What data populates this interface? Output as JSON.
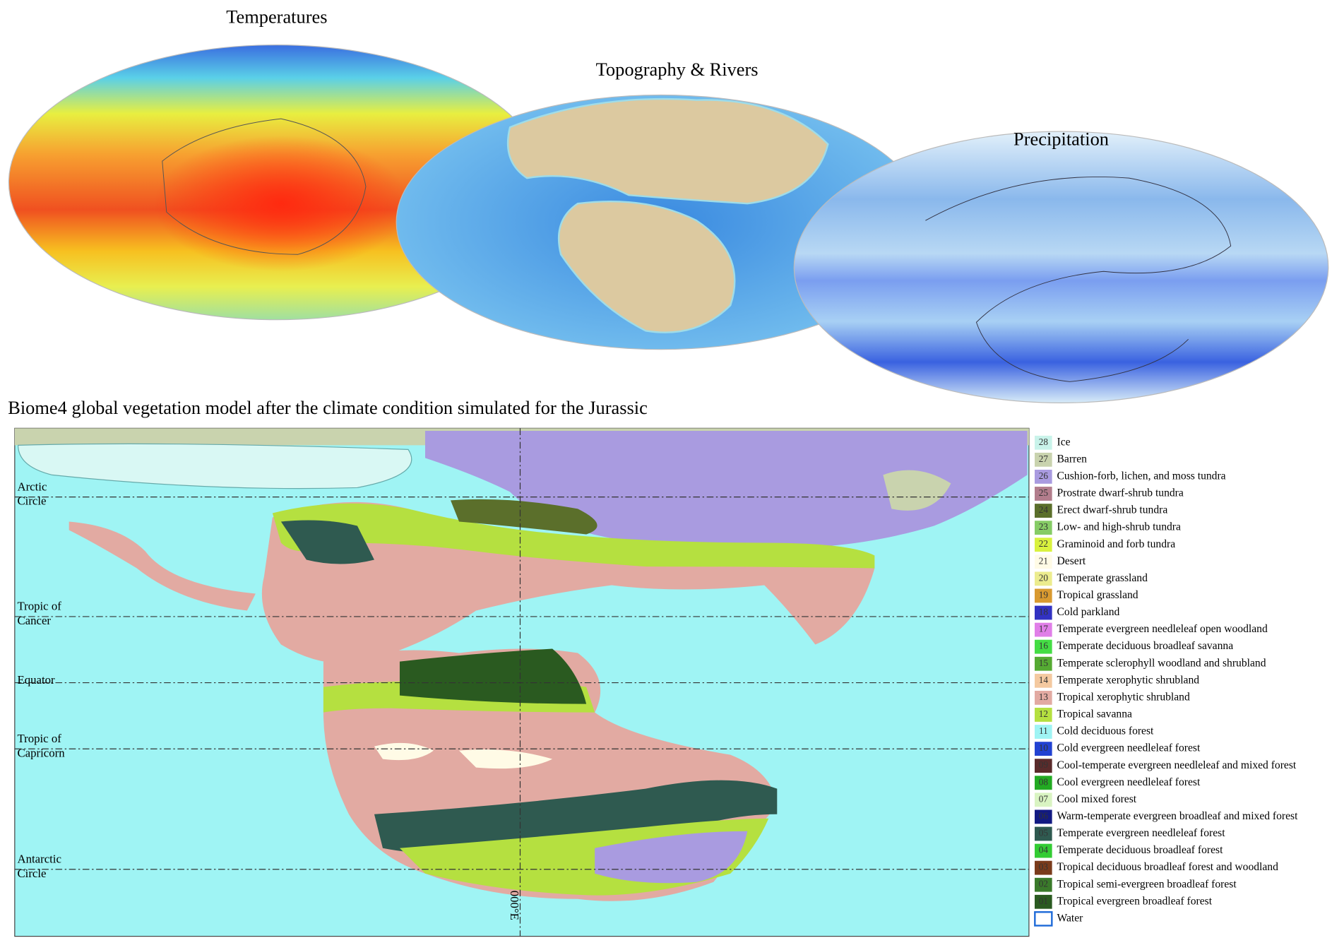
{
  "panels": [
    {
      "title": "Temperatures"
    },
    {
      "title": "Topography & Rivers"
    },
    {
      "title": "Precipitation"
    }
  ],
  "map": {
    "title": "Biome4 global vegetation model after the climate condition simulated for the Jurassic",
    "parallels": [
      {
        "lines": [
          "Arctic",
          "Circle"
        ]
      },
      {
        "lines": [
          "Tropic of",
          "Cancer"
        ]
      },
      {
        "lines": [
          "Equator"
        ]
      },
      {
        "lines": [
          "Tropic of",
          "Capricorn"
        ]
      },
      {
        "lines": [
          "Antarctic",
          "Circle"
        ]
      }
    ],
    "meridian_label": "000°E"
  },
  "legend": [
    {
      "code": "28",
      "label": "Ice",
      "color": "#c9f3ea"
    },
    {
      "code": "27",
      "label": "Barren",
      "color": "#c9d3ae"
    },
    {
      "code": "26",
      "label": "Cushion-forb, lichen, and moss tundra",
      "color": "#a99be0"
    },
    {
      "code": "25",
      "label": "Prostrate dwarf-shrub tundra",
      "color": "#b27d8c"
    },
    {
      "code": "24",
      "label": "Erect dwarf-shrub tundra",
      "color": "#5b6f2b"
    },
    {
      "code": "23",
      "label": "Low- and high-shrub tundra",
      "color": "#86cc66"
    },
    {
      "code": "22",
      "label": "Graminoid and forb tundra",
      "color": "#d9f23e"
    },
    {
      "code": "21",
      "label": "Desert",
      "color": "#fffbe6"
    },
    {
      "code": "20",
      "label": "Temperate grassland",
      "color": "#ecec8e"
    },
    {
      "code": "19",
      "label": "Tropical grassland",
      "color": "#d99a30"
    },
    {
      "code": "18",
      "label": "Cold parkland",
      "color": "#3232c2"
    },
    {
      "code": "17",
      "label": "Temperate evergreen needleleaf open woodland",
      "color": "#e07ee8"
    },
    {
      "code": "16",
      "label": "Temperate deciduous broadleaf savanna",
      "color": "#44dd44"
    },
    {
      "code": "15",
      "label": "Temperate sclerophyll woodland and shrubland",
      "color": "#55aa33"
    },
    {
      "code": "14",
      "label": "Temperate xerophytic shrubland",
      "color": "#f4c9a0"
    },
    {
      "code": "13",
      "label": "Tropical xerophytic shrubland",
      "color": "#e2aaa2"
    },
    {
      "code": "12",
      "label": "Tropical savanna",
      "color": "#b5e040"
    },
    {
      "code": "11",
      "label": "Cold deciduous forest",
      "color": "#9ff4f4"
    },
    {
      "code": "10",
      "label": "Cold evergreen needleleaf forest",
      "color": "#2242d2"
    },
    {
      "code": "09",
      "label": "Cool-temperate evergreen needleleaf and mixed forest",
      "color": "#5a2b2b"
    },
    {
      "code": "08",
      "label": "Cool evergreen needleleaf forest",
      "color": "#22aa22"
    },
    {
      "code": "07",
      "label": "Cool mixed forest",
      "color": "#d9f4c2"
    },
    {
      "code": "06",
      "label": "Warm-temperate evergreen broadleaf and mixed forest",
      "color": "#121a82"
    },
    {
      "code": "05",
      "label": "Temperate evergreen needleleaf forest",
      "color": "#2f5a50"
    },
    {
      "code": "04",
      "label": "Temperate deciduous broadleaf forest",
      "color": "#33cc33"
    },
    {
      "code": "03",
      "label": "Tropical deciduous broadleaf forest and woodland",
      "color": "#7a3b1b"
    },
    {
      "code": "02",
      "label": "Tropical semi-evergreen broadleaf forest",
      "color": "#3a7a2a"
    },
    {
      "code": "01",
      "label": "Tropical evergreen broadleaf forest",
      "color": "#2a5a20"
    },
    {
      "label": "Water",
      "color": "#1e6ad8"
    }
  ]
}
